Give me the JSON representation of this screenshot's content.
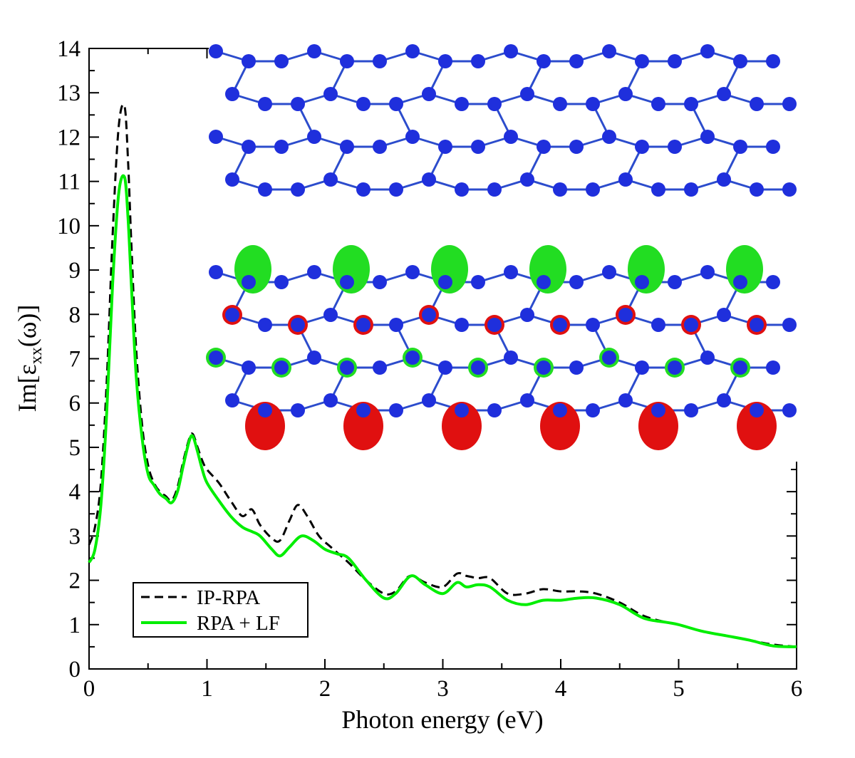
{
  "chart_data": {
    "type": "line",
    "xlabel": "Photon energy (eV)",
    "ylabel_main": "Im[ε",
    "ylabel_sub": "xx",
    "ylabel_tail": "(ω)]",
    "xlim": [
      0,
      6
    ],
    "ylim": [
      0,
      14
    ],
    "xticks": [
      "0",
      "1",
      "2",
      "3",
      "4",
      "5",
      "6"
    ],
    "yticks": [
      "0",
      "1",
      "2",
      "3",
      "4",
      "5",
      "6",
      "7",
      "8",
      "9",
      "10",
      "11",
      "12",
      "13",
      "14"
    ],
    "legend_position": "bottom-left",
    "grid": false,
    "series": [
      {
        "name": "IP-RPA",
        "color": "#000000",
        "style": "dashed",
        "x": [
          0,
          0.05,
          0.1,
          0.15,
          0.2,
          0.25,
          0.3,
          0.33,
          0.36,
          0.4,
          0.45,
          0.5,
          0.55,
          0.6,
          0.65,
          0.7,
          0.75,
          0.8,
          0.85,
          0.88,
          0.92,
          0.96,
          1.0,
          1.1,
          1.2,
          1.3,
          1.38,
          1.45,
          1.55,
          1.62,
          1.7,
          1.77,
          1.85,
          1.95,
          2.05,
          2.2,
          2.35,
          2.5,
          2.6,
          2.72,
          2.85,
          3.0,
          3.12,
          3.2,
          3.3,
          3.4,
          3.55,
          3.7,
          3.85,
          4.0,
          4.15,
          4.3,
          4.5,
          4.7,
          4.9,
          5.0,
          5.2,
          5.4,
          5.6,
          5.8,
          6.0
        ],
        "y": [
          2.8,
          3.2,
          4.2,
          6.5,
          9.8,
          12.2,
          12.7,
          11.5,
          9.5,
          7.2,
          5.5,
          4.6,
          4.2,
          4.0,
          3.9,
          3.8,
          4.1,
          4.7,
          5.2,
          5.3,
          5.0,
          4.7,
          4.5,
          4.2,
          3.8,
          3.45,
          3.6,
          3.25,
          2.95,
          2.9,
          3.35,
          3.7,
          3.45,
          3.0,
          2.75,
          2.4,
          2.0,
          1.7,
          1.75,
          2.1,
          1.95,
          1.85,
          2.15,
          2.1,
          2.05,
          2.05,
          1.7,
          1.7,
          1.8,
          1.75,
          1.75,
          1.7,
          1.5,
          1.2,
          1.05,
          1.0,
          0.85,
          0.75,
          0.65,
          0.55,
          0.5
        ]
      },
      {
        "name": "RPA + LF",
        "color": "#00ee00",
        "style": "solid",
        "x": [
          0,
          0.05,
          0.1,
          0.15,
          0.2,
          0.25,
          0.3,
          0.33,
          0.36,
          0.4,
          0.45,
          0.5,
          0.55,
          0.6,
          0.65,
          0.7,
          0.75,
          0.8,
          0.85,
          0.88,
          0.92,
          0.96,
          1.0,
          1.1,
          1.2,
          1.3,
          1.38,
          1.45,
          1.55,
          1.62,
          1.7,
          1.8,
          1.9,
          2.0,
          2.1,
          2.2,
          2.35,
          2.5,
          2.6,
          2.73,
          2.85,
          3.0,
          3.12,
          3.2,
          3.3,
          3.4,
          3.55,
          3.7,
          3.85,
          4.0,
          4.15,
          4.3,
          4.5,
          4.7,
          4.9,
          5.0,
          5.2,
          5.4,
          5.6,
          5.8,
          6.0
        ],
        "y": [
          2.4,
          2.7,
          3.7,
          5.8,
          8.7,
          10.7,
          11.1,
          10.2,
          8.6,
          6.6,
          5.2,
          4.4,
          4.15,
          3.95,
          3.85,
          3.75,
          4.0,
          4.6,
          5.15,
          5.25,
          4.9,
          4.5,
          4.2,
          3.8,
          3.45,
          3.2,
          3.1,
          3.0,
          2.7,
          2.55,
          2.75,
          3.0,
          2.9,
          2.7,
          2.6,
          2.5,
          2.0,
          1.6,
          1.7,
          2.1,
          1.9,
          1.7,
          1.95,
          1.85,
          1.9,
          1.85,
          1.55,
          1.45,
          1.55,
          1.55,
          1.6,
          1.6,
          1.45,
          1.15,
          1.05,
          1.0,
          0.85,
          0.75,
          0.65,
          0.52,
          0.5
        ]
      }
    ]
  }
}
